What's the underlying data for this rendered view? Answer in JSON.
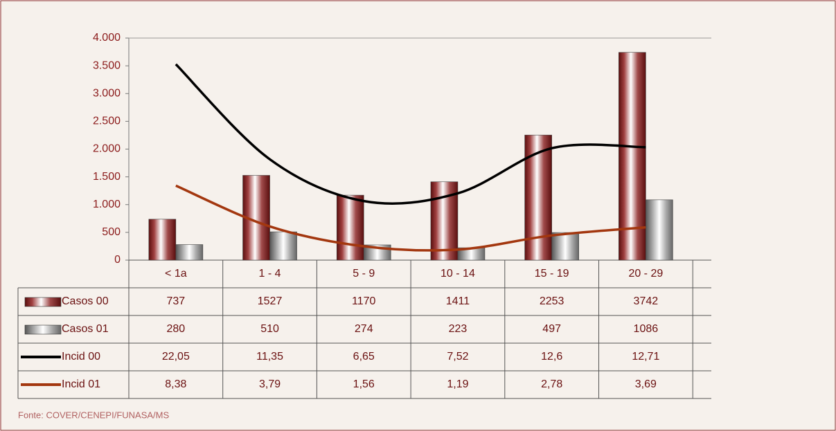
{
  "chart_data": {
    "type": "bar",
    "categories": [
      "< 1a",
      "1 - 4",
      "5 - 9",
      "10 - 14",
      "15 - 19",
      "20 - 29"
    ],
    "series": [
      {
        "name": "Casos 00",
        "color": "#7a1c1c",
        "values": [
          737,
          1527,
          1170,
          1411,
          2253,
          3742
        ]
      },
      {
        "name": "Casos 01",
        "color": "#8c8c8c",
        "values": [
          280,
          510,
          274,
          223,
          497,
          1086
        ]
      },
      {
        "name": "Incid 00",
        "color": "#000000",
        "type": "line",
        "axis": "y2",
        "values": [
          22.05,
          11.35,
          6.65,
          7.52,
          12.6,
          12.71
        ],
        "value_labels": [
          "22,05",
          "11,35",
          "6,65",
          "7,52",
          "12,6",
          "12,71"
        ]
      },
      {
        "name": "Incid 01",
        "color": "#a3370f",
        "type": "line",
        "axis": "y2",
        "values": [
          8.38,
          3.79,
          1.56,
          1.19,
          2.78,
          3.69
        ],
        "value_labels": [
          "8,38",
          "3,79",
          "1,56",
          "1,19",
          "2,78",
          "3,69"
        ]
      }
    ],
    "ylim": [
      0,
      4000
    ],
    "yticks": [
      0,
      500,
      {
        "value": 1000,
        "label": "1.000"
      },
      {
        "value": 1500,
        "label": "1.500"
      },
      {
        "value": 2000,
        "label": "2.000"
      },
      {
        "value": 2500,
        "label": "2.500"
      },
      {
        "value": 3000,
        "label": "3.000"
      },
      {
        "value": 3500,
        "label": "3.500"
      },
      {
        "value": 4000,
        "label": "4.000"
      }
    ],
    "y2lim": [
      0,
      25
    ],
    "grid": false,
    "source": "Fonte: COVER/CENEPI/FUNASA/MS"
  }
}
